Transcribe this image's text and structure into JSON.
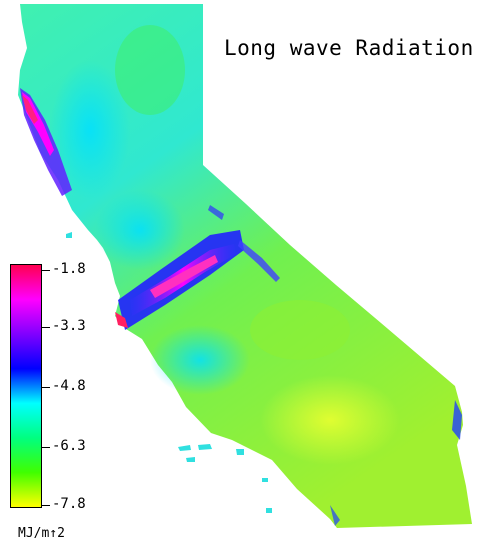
{
  "title": "Long wave Radiation",
  "legend": {
    "unit": "MJ/m↑2",
    "ticks": [
      "-1.8",
      "-3.3",
      "-4.8",
      "-6.3",
      "-7.8"
    ],
    "colors": [
      "#ff0050",
      "#ff00ff",
      "#8000ff",
      "#0000ff",
      "#00ffff",
      "#00ff80",
      "#40ff00",
      "#ffff00"
    ]
  },
  "map": {
    "region": "California",
    "background_color": "#3cf0a0",
    "highlight_colors": {
      "high": "#ff1493",
      "mid_high": "#ff00ff",
      "mid": "#4040ff",
      "low_mid": "#00e5ff",
      "low": "#7cfc00",
      "lowest": "#e0ff20"
    }
  }
}
